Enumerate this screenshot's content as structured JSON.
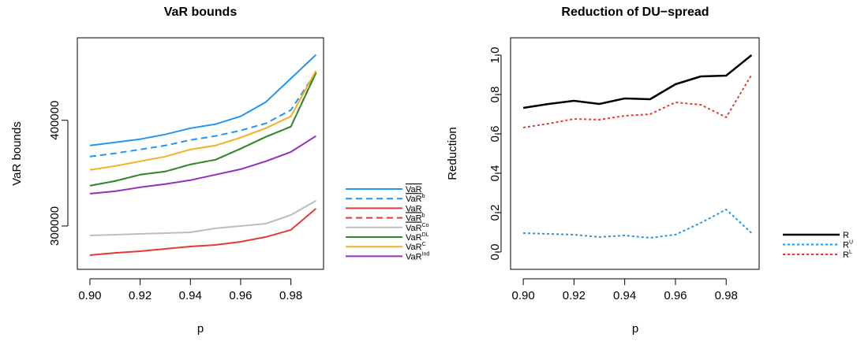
{
  "chart_data": [
    {
      "type": "line",
      "title": "VaR bounds",
      "xlabel": "p",
      "ylabel": "VaR bounds",
      "x": [
        0.9,
        0.91,
        0.92,
        0.93,
        0.94,
        0.95,
        0.96,
        0.97,
        0.98,
        0.99
      ],
      "xlim": [
        0.895,
        0.993
      ],
      "xticks": [
        {
          "value": 0.9,
          "label": "0.90"
        },
        {
          "value": 0.92,
          "label": "0.92"
        },
        {
          "value": 0.94,
          "label": "0.94"
        },
        {
          "value": 0.96,
          "label": "0.96"
        },
        {
          "value": 0.98,
          "label": "0.98"
        }
      ],
      "ylim": [
        259000,
        478000
      ],
      "yticks": [
        300000,
        400000
      ],
      "legend": "right",
      "series": [
        {
          "name": "VaR",
          "bar": "over",
          "color": "#2196f3",
          "dash": false,
          "values": [
            376100,
            379100,
            382100,
            386600,
            392500,
            396300,
            403700,
            417200,
            439600,
            461900
          ]
        },
        {
          "name": "VaR",
          "bar": "over",
          "sup": "b",
          "color": "#2196f3",
          "dash": true,
          "values": [
            365700,
            368700,
            372400,
            376100,
            381300,
            385100,
            390300,
            397000,
            409700,
            445500
          ]
        },
        {
          "name": "VaR",
          "bar": "under",
          "color": "#e53935",
          "dash": false,
          "values": [
            272400,
            274600,
            276100,
            278400,
            280600,
            282100,
            285100,
            289600,
            296300,
            316400
          ]
        },
        {
          "name": "VaR",
          "bar": "under",
          "sup": "b",
          "color": "#e53935",
          "dash": true,
          "values": [
            338100,
            342500,
            348500,
            351500,
            358200,
            362700,
            373100,
            384300,
            394000,
            445500
          ]
        },
        {
          "name": "VaR",
          "sup": "Co",
          "color": "#bdbdbd",
          "dash": false,
          "values": [
            291000,
            291800,
            292500,
            293300,
            294000,
            297800,
            300000,
            302200,
            310400,
            323900
          ]
        },
        {
          "name": "VaR",
          "sup": "DL",
          "color": "#2e8b2e",
          "dash": false,
          "values": [
            338100,
            342500,
            348500,
            351500,
            358200,
            362700,
            373100,
            384300,
            394000,
            444800
          ]
        },
        {
          "name": "VaR",
          "sup": "C",
          "color": "#f5b020",
          "dash": false,
          "values": [
            353000,
            356700,
            361200,
            365700,
            372400,
            376100,
            383600,
            392500,
            403700,
            447000
          ]
        },
        {
          "name": "VaR",
          "sup": "Ind",
          "color": "#9030c0",
          "dash": false,
          "values": [
            330600,
            332800,
            336600,
            339600,
            343300,
            348500,
            353700,
            361200,
            370100,
            385100
          ]
        }
      ]
    },
    {
      "type": "line",
      "title": "Reduction of DU−spread",
      "xlabel": "p",
      "ylabel": "Reduction",
      "x": [
        0.9,
        0.91,
        0.92,
        0.93,
        0.94,
        0.95,
        0.96,
        0.97,
        0.98,
        0.99
      ],
      "xlim": [
        0.895,
        0.993
      ],
      "xticks": [
        {
          "value": 0.9,
          "label": "0.90"
        },
        {
          "value": 0.92,
          "label": "0.92"
        },
        {
          "value": 0.94,
          "label": "0.94"
        },
        {
          "value": 0.96,
          "label": "0.96"
        },
        {
          "value": 0.98,
          "label": "0.98"
        }
      ],
      "ylim": [
        -0.088,
        1.088
      ],
      "yticks": [
        {
          "value": 0,
          "label": "0.0"
        },
        0.2,
        0.4,
        0.6,
        0.8,
        {
          "value": 1,
          "label": "1.0"
        }
      ],
      "legend": "right",
      "series": [
        {
          "name": "R",
          "color": "#000000",
          "dash": false,
          "width": 2.5,
          "values": [
            0.732,
            0.752,
            0.768,
            0.752,
            0.78,
            0.776,
            0.852,
            0.892,
            0.896,
            1.0
          ]
        },
        {
          "name": "R",
          "sup": "U",
          "color": "#2196f3",
          "dash": true,
          "values": [
            0.096,
            0.092,
            0.088,
            0.076,
            0.084,
            0.072,
            0.088,
            0.148,
            0.216,
            0.096
          ]
        },
        {
          "name": "R",
          "sup": "L",
          "color": "#e53935",
          "dash": true,
          "values": [
            0.632,
            0.652,
            0.676,
            0.672,
            0.692,
            0.7,
            0.76,
            0.748,
            0.684,
            0.9
          ]
        }
      ]
    }
  ]
}
